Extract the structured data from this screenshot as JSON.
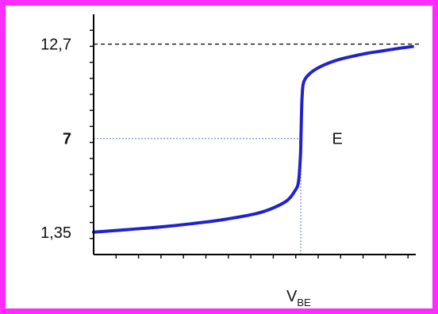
{
  "chart_data": {
    "type": "line",
    "title": "",
    "xlabel": {
      "main": "V",
      "sub": "BE"
    },
    "ylabel": "",
    "x_domain": [
      0,
      10
    ],
    "ylim": [
      0,
      14.5
    ],
    "y_tick_labels": [
      {
        "value": 12.7,
        "text": "12,7",
        "bold": false
      },
      {
        "value": 7,
        "text": "7",
        "bold": true
      },
      {
        "value": 1.35,
        "text": "1,35",
        "bold": false
      }
    ],
    "series": [
      {
        "color": "#2222cc",
        "points": [
          [
            0,
            1.35
          ],
          [
            1,
            1.5
          ],
          [
            2,
            1.65
          ],
          [
            3,
            1.85
          ],
          [
            4,
            2.1
          ],
          [
            5,
            2.45
          ],
          [
            5.5,
            2.75
          ],
          [
            6,
            3.25
          ],
          [
            6.25,
            3.85
          ],
          [
            6.36,
            4.4
          ],
          [
            6.42,
            6
          ],
          [
            6.44,
            7.5
          ],
          [
            6.47,
            9.5
          ],
          [
            6.52,
            10.4
          ],
          [
            6.7,
            10.9
          ],
          [
            7,
            11.3
          ],
          [
            7.5,
            11.7
          ],
          [
            8,
            11.95
          ],
          [
            8.5,
            12.15
          ],
          [
            9,
            12.3
          ],
          [
            9.5,
            12.45
          ],
          [
            9.9,
            12.55
          ]
        ]
      }
    ],
    "reference_lines": [
      {
        "type": "horizontal",
        "y": 12.7,
        "style": "dashed",
        "color": "#000000"
      },
      {
        "type": "horizontal",
        "y": 7,
        "x_to": 6.43,
        "style": "dotted",
        "color": "#7d86d8"
      },
      {
        "type": "vertical",
        "x": 6.43,
        "style": "dotted",
        "color": "#7d86d8"
      }
    ],
    "annotations": [
      {
        "text": "E",
        "x": 7.4,
        "y": 7
      }
    ],
    "grid": false,
    "legend": "none"
  },
  "colors": {
    "frame": "#ff2bff",
    "curve": "#2222cc",
    "guide": "#7d86d8",
    "axis": "#000000"
  }
}
